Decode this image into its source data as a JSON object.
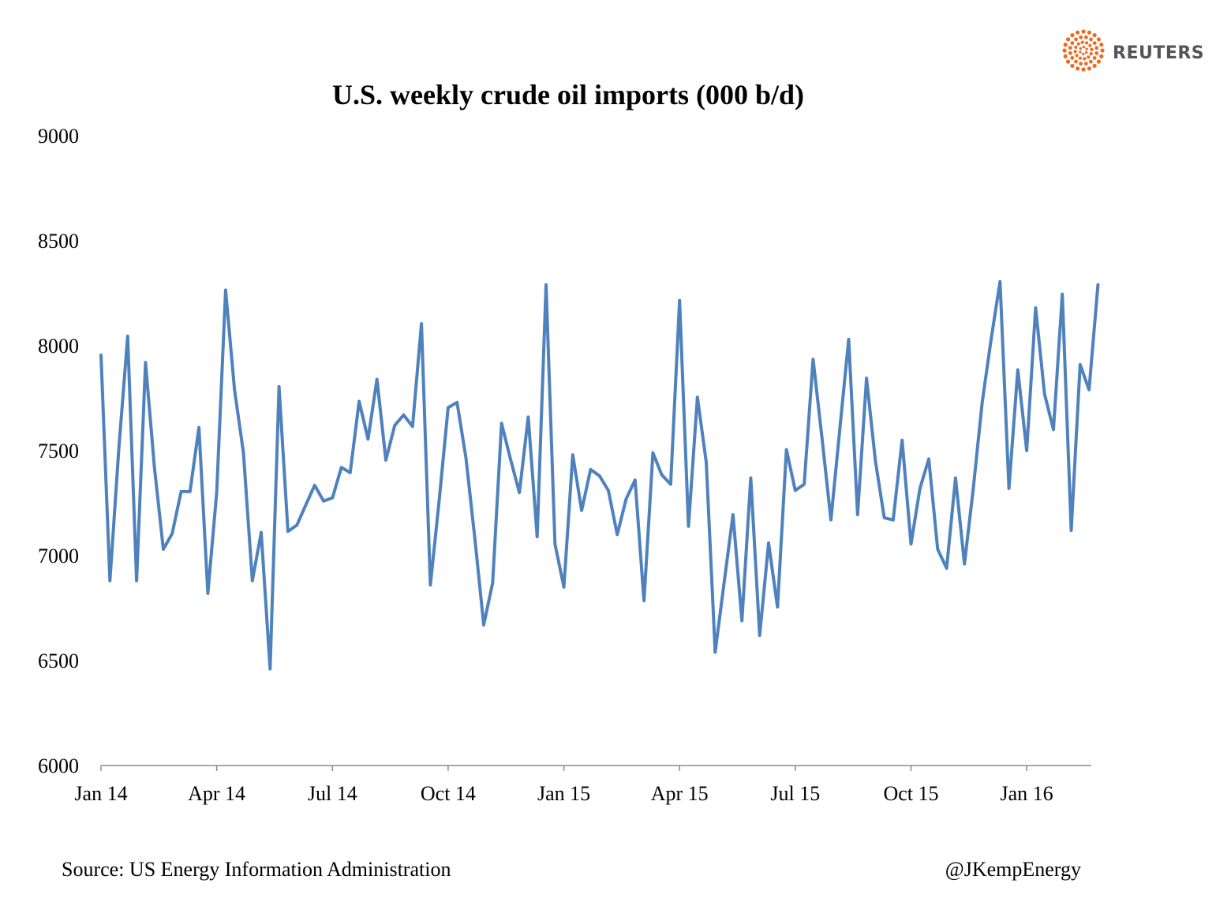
{
  "brand": {
    "name": "REUTERS",
    "color": "#ee6a1f"
  },
  "chart_data": {
    "type": "line",
    "title": "U.S. weekly crude oil imports (000 b/d)",
    "xlabel": "",
    "ylabel": "",
    "ylim": [
      6000,
      9000
    ],
    "yticks": [
      6000,
      6500,
      7000,
      7500,
      8000,
      8500,
      9000
    ],
    "xticks": [
      {
        "label": "Jan 14",
        "index": 0
      },
      {
        "label": "Apr 14",
        "index": 13
      },
      {
        "label": "Jul 14",
        "index": 26
      },
      {
        "label": "Oct 14",
        "index": 39
      },
      {
        "label": "Jan 15",
        "index": 52
      },
      {
        "label": "Apr 15",
        "index": 65
      },
      {
        "label": "Jul 15",
        "index": 78
      },
      {
        "label": "Oct 15",
        "index": 91
      },
      {
        "label": "Jan 16",
        "index": 104
      }
    ],
    "series": [
      {
        "name": "U.S. weekly crude oil imports",
        "color": "#4f81bd",
        "values": [
          7955,
          6880,
          7510,
          8045,
          6880,
          7920,
          7420,
          7030,
          7105,
          7305,
          7305,
          7610,
          6820,
          7300,
          8265,
          7790,
          7490,
          6880,
          7110,
          6460,
          7805,
          7115,
          7145,
          7240,
          7335,
          7260,
          7275,
          7420,
          7395,
          7735,
          7555,
          7840,
          7455,
          7620,
          7670,
          7615,
          8105,
          6860,
          7265,
          7705,
          7730,
          7465,
          7080,
          6670,
          6870,
          7630,
          7460,
          7300,
          7660,
          7090,
          8290,
          7055,
          6850,
          7480,
          7215,
          7410,
          7380,
          7310,
          7100,
          7270,
          7360,
          6785,
          7490,
          7385,
          7340,
          8215,
          7140,
          7755,
          7445,
          6540,
          6870,
          7195,
          6690,
          7370,
          6620,
          7060,
          6755,
          7505,
          7310,
          7340,
          7935,
          7560,
          7170,
          7600,
          8030,
          7195,
          7845,
          7450,
          7180,
          7170,
          7550,
          7055,
          7320,
          7460,
          7030,
          6940,
          7370,
          6960,
          7320,
          7730,
          8030,
          8305,
          7320,
          7885,
          7500,
          8180,
          7770,
          7600,
          8245,
          7120,
          7910,
          7790,
          8290
        ]
      }
    ]
  },
  "footer": {
    "source": "Source: US Energy Information Administration",
    "credit": "@JKempEnergy"
  }
}
